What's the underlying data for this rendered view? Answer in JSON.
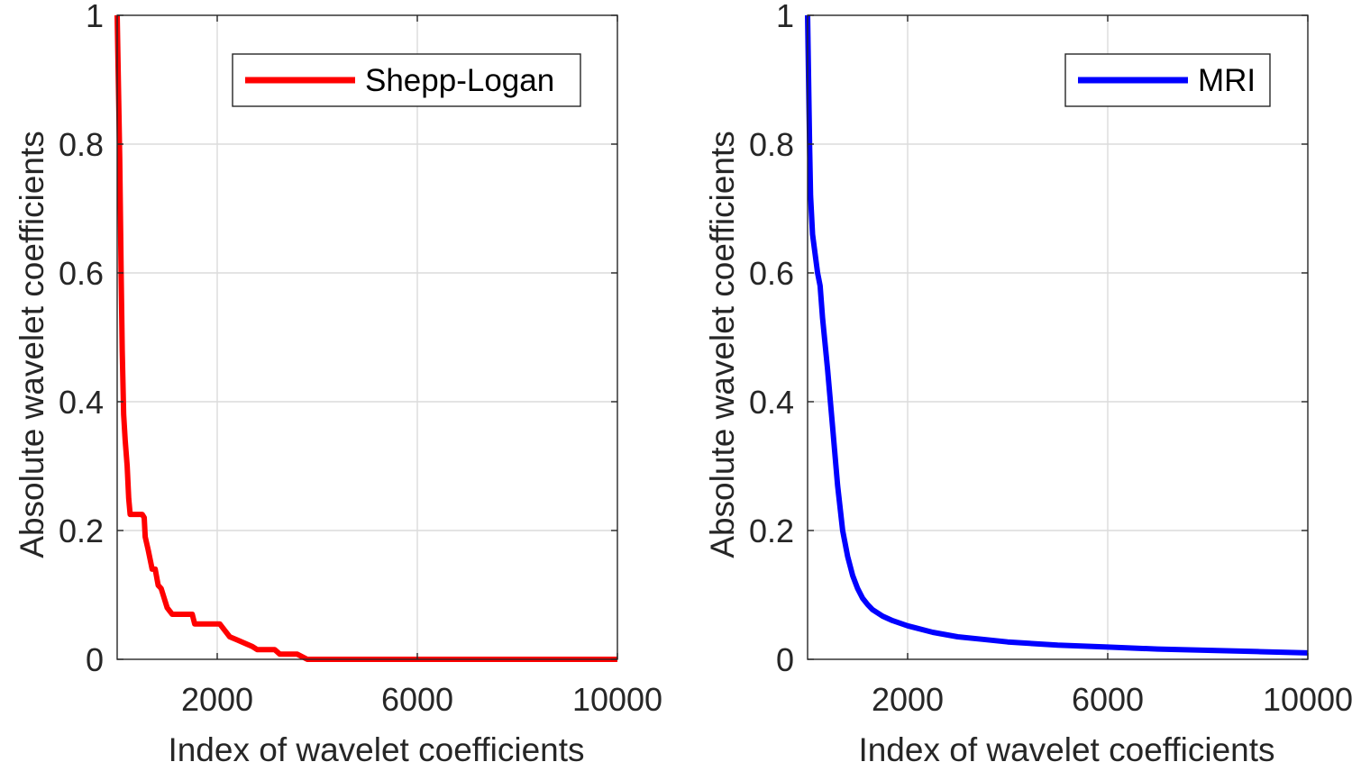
{
  "chart_data": [
    {
      "type": "line",
      "xlabel": "Index of wavelet coefficients",
      "ylabel": "Absolute wavelet coefficients",
      "xlim": [
        0,
        10000
      ],
      "ylim": [
        0,
        1
      ],
      "xticks": [
        2000,
        6000,
        10000
      ],
      "xtick_labels": [
        "2000",
        "6000",
        "10000"
      ],
      "yticks": [
        0,
        0.2,
        0.4,
        0.6,
        0.8,
        1
      ],
      "ytick_labels": [
        "0",
        "0.2",
        "0.4",
        "0.6",
        "0.8",
        "1"
      ],
      "xgrid": [
        2000,
        6000
      ],
      "ygrid": [
        0.2,
        0.4,
        0.6,
        0.8
      ],
      "grid": true,
      "legend_position": "top-right",
      "series": [
        {
          "name": "Shepp-Logan",
          "color": "#ff0000",
          "x": [
            0,
            50,
            80,
            100,
            130,
            160,
            200,
            230,
            260,
            300,
            350,
            400,
            500,
            540,
            560,
            620,
            700,
            760,
            820,
            880,
            1000,
            1100,
            1400,
            1500,
            1550,
            2050,
            2150,
            2250,
            2400,
            2550,
            2700,
            2800,
            3150,
            3250,
            3600,
            3800,
            10000
          ],
          "y": [
            1.0,
            0.78,
            0.6,
            0.48,
            0.38,
            0.34,
            0.3,
            0.25,
            0.225,
            0.225,
            0.225,
            0.225,
            0.225,
            0.22,
            0.19,
            0.17,
            0.14,
            0.14,
            0.115,
            0.11,
            0.08,
            0.07,
            0.07,
            0.07,
            0.055,
            0.055,
            0.045,
            0.035,
            0.03,
            0.025,
            0.02,
            0.015,
            0.015,
            0.008,
            0.008,
            0.0,
            0.0
          ]
        }
      ]
    },
    {
      "type": "line",
      "xlabel": "Index of wavelet coefficients",
      "ylabel": "Absolute wavelet coefficients",
      "xlim": [
        0,
        10000
      ],
      "ylim": [
        0,
        1
      ],
      "xticks": [
        2000,
        6000,
        10000
      ],
      "xtick_labels": [
        "2000",
        "6000",
        "10000"
      ],
      "yticks": [
        0,
        0.2,
        0.4,
        0.6,
        0.8,
        1
      ],
      "ytick_labels": [
        "0",
        "0.2",
        "0.4",
        "0.6",
        "0.8",
        "1"
      ],
      "xgrid": [
        2000,
        6000
      ],
      "ygrid": [
        0.2,
        0.4,
        0.6,
        0.8
      ],
      "grid": true,
      "legend_position": "top-right",
      "series": [
        {
          "name": "MRI",
          "color": "#0000ff",
          "x": [
            0,
            20,
            40,
            60,
            100,
            150,
            200,
            250,
            300,
            400,
            500,
            600,
            700,
            800,
            900,
            1000,
            1100,
            1200,
            1300,
            1500,
            1700,
            2000,
            2500,
            3000,
            3500,
            4000,
            5000,
            6000,
            7000,
            8000,
            9000,
            10000
          ],
          "y": [
            1.0,
            0.9,
            0.8,
            0.72,
            0.66,
            0.63,
            0.6,
            0.58,
            0.53,
            0.45,
            0.36,
            0.27,
            0.2,
            0.16,
            0.13,
            0.11,
            0.095,
            0.085,
            0.077,
            0.067,
            0.06,
            0.052,
            0.042,
            0.035,
            0.031,
            0.027,
            0.022,
            0.019,
            0.016,
            0.014,
            0.012,
            0.01
          ]
        }
      ]
    }
  ]
}
